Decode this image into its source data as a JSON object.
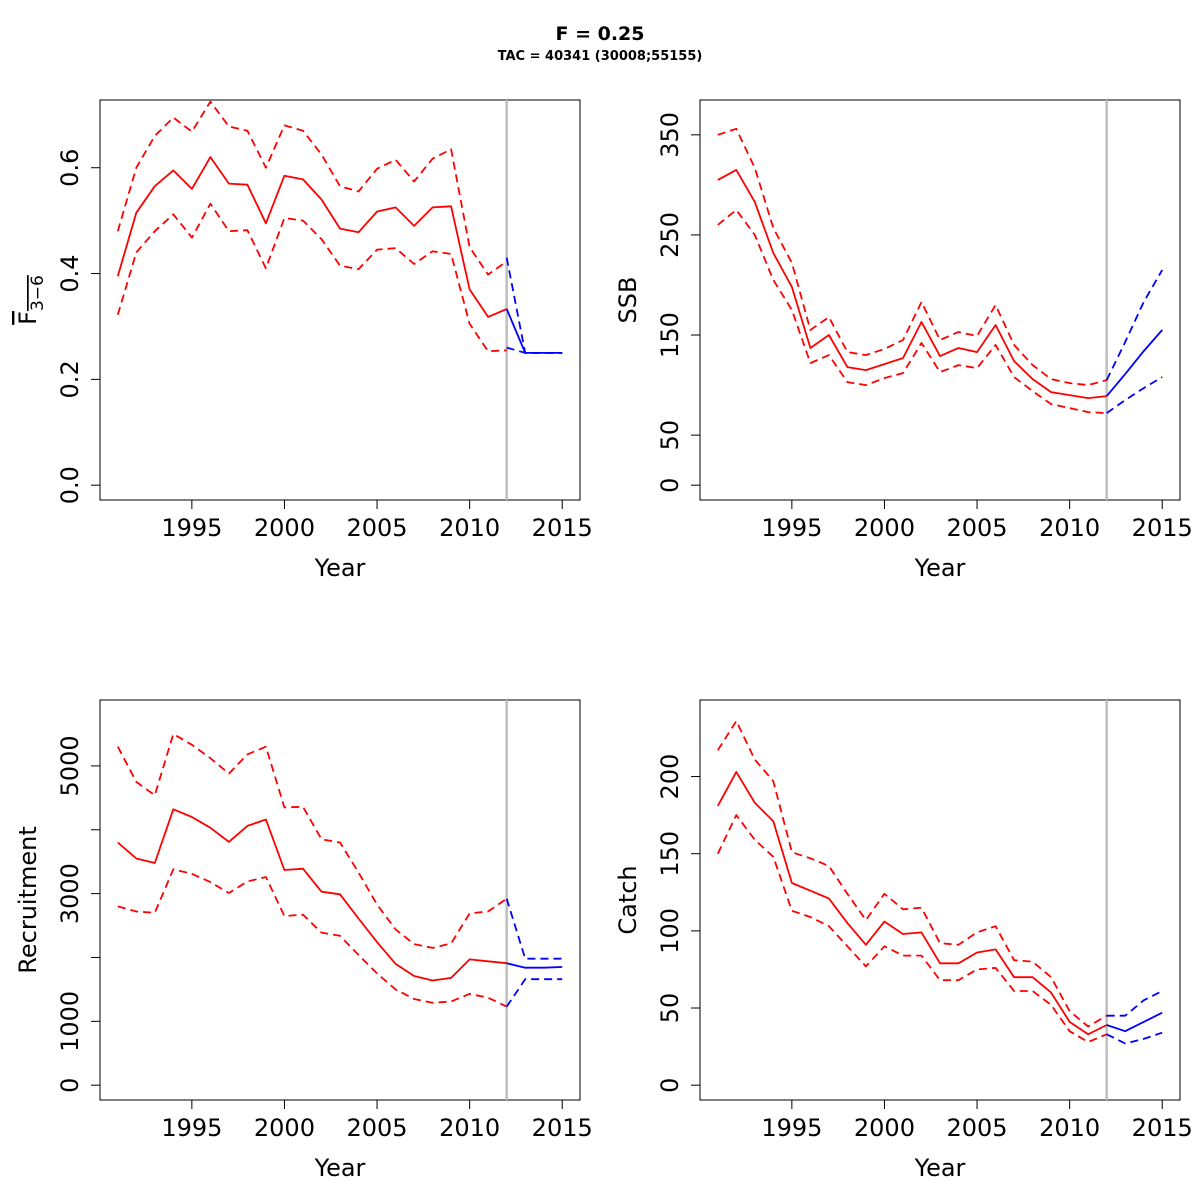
{
  "header": {
    "title": "F = 0.25",
    "subtitle": "TAC = 40341 (30008;55155)"
  },
  "colors": {
    "historic": "#ff0000",
    "forecast": "#0000ff",
    "divider": "#bebebe",
    "frame": "#000000"
  },
  "chart_data": [
    {
      "type": "line",
      "panel": "top-left",
      "xlabel": "Year",
      "ylabel": "F",
      "ylabel_sub": "3−6",
      "xlim": [
        1991,
        2015
      ],
      "ylim": [
        0,
        0.7
      ],
      "x_ticks": [
        1995,
        2000,
        2005,
        2010,
        2015
      ],
      "y_ticks": [
        0.0,
        0.2,
        0.4,
        0.6
      ],
      "y_tick_labels": [
        "0.0",
        "0.2",
        "0.4",
        "0.6"
      ],
      "divider_x": 2012,
      "series": [
        {
          "role": "historic",
          "style": "solid",
          "x": [
            1991,
            1992,
            1993,
            1994,
            1995,
            1996,
            1997,
            1998,
            1999,
            2000,
            2001,
            2002,
            2003,
            2004,
            2005,
            2006,
            2007,
            2008,
            2009,
            2010,
            2011,
            2012
          ],
          "values": [
            0.395,
            0.515,
            0.565,
            0.595,
            0.56,
            0.62,
            0.57,
            0.568,
            0.495,
            0.585,
            0.578,
            0.54,
            0.485,
            0.478,
            0.517,
            0.525,
            0.49,
            0.525,
            0.527,
            0.37,
            0.318,
            0.333
          ]
        },
        {
          "role": "historic",
          "style": "dashed",
          "x": [
            1991,
            1992,
            1993,
            1994,
            1995,
            1996,
            1997,
            1998,
            1999,
            2000,
            2001,
            2002,
            2003,
            2004,
            2005,
            2006,
            2007,
            2008,
            2009,
            2010,
            2011,
            2012
          ],
          "values": [
            0.48,
            0.6,
            0.66,
            0.695,
            0.668,
            0.725,
            0.678,
            0.67,
            0.6,
            0.68,
            0.67,
            0.625,
            0.565,
            0.555,
            0.598,
            0.615,
            0.574,
            0.617,
            0.635,
            0.45,
            0.398,
            0.423
          ]
        },
        {
          "role": "historic",
          "style": "dashed",
          "x": [
            1991,
            1992,
            1993,
            1994,
            1995,
            1996,
            1997,
            1998,
            1999,
            2000,
            2001,
            2002,
            2003,
            2004,
            2005,
            2006,
            2007,
            2008,
            2009,
            2010,
            2011,
            2012
          ],
          "values": [
            0.322,
            0.44,
            0.48,
            0.512,
            0.468,
            0.532,
            0.48,
            0.482,
            0.41,
            0.505,
            0.5,
            0.465,
            0.415,
            0.408,
            0.445,
            0.448,
            0.418,
            0.442,
            0.437,
            0.305,
            0.253,
            0.255
          ]
        },
        {
          "role": "forecast",
          "style": "solid",
          "x": [
            2012,
            2013,
            2014,
            2015
          ],
          "values": [
            0.333,
            0.25,
            0.25,
            0.25
          ]
        },
        {
          "role": "forecast",
          "style": "dashed",
          "x": [
            2012,
            2013,
            2014,
            2015
          ],
          "values": [
            0.43,
            0.25,
            0.25,
            0.25
          ]
        },
        {
          "role": "forecast",
          "style": "dashed",
          "x": [
            2012,
            2013,
            2014,
            2015
          ],
          "values": [
            0.26,
            0.25,
            0.25,
            0.25
          ]
        }
      ]
    },
    {
      "type": "line",
      "panel": "top-right",
      "xlabel": "Year",
      "ylabel": "SSB",
      "ylabel_sub": "",
      "xlim": [
        1991,
        2015
      ],
      "ylim": [
        0,
        370
      ],
      "x_ticks": [
        1995,
        2000,
        2005,
        2010,
        2015
      ],
      "y_ticks": [
        0,
        50,
        150,
        250,
        350
      ],
      "y_tick_labels": [
        "0",
        "50",
        "150",
        "250",
        "350"
      ],
      "divider_x": 2012,
      "series": [
        {
          "role": "historic",
          "style": "solid",
          "x": [
            1991,
            1992,
            1993,
            1994,
            1995,
            1996,
            1997,
            1998,
            1999,
            2000,
            2001,
            2002,
            2003,
            2004,
            2005,
            2006,
            2007,
            2008,
            2009,
            2010,
            2011,
            2012
          ],
          "values": [
            305,
            315,
            283,
            232,
            198,
            137,
            150,
            118,
            115,
            121,
            127,
            163,
            129,
            137,
            133,
            160,
            124,
            106,
            93,
            90,
            87,
            89
          ]
        },
        {
          "role": "historic",
          "style": "dashed",
          "x": [
            1991,
            1992,
            1993,
            1994,
            1995,
            1996,
            1997,
            1998,
            1999,
            2000,
            2001,
            2002,
            2003,
            2004,
            2005,
            2006,
            2007,
            2008,
            2009,
            2010,
            2011,
            2012
          ],
          "values": [
            350,
            356,
            317,
            257,
            222,
            155,
            168,
            133,
            130,
            136,
            145,
            183,
            145,
            153,
            149,
            180,
            140,
            120,
            106,
            102,
            100,
            105
          ]
        },
        {
          "role": "historic",
          "style": "dashed",
          "x": [
            1991,
            1992,
            1993,
            1994,
            1995,
            1996,
            1997,
            1998,
            1999,
            2000,
            2001,
            2002,
            2003,
            2004,
            2005,
            2006,
            2007,
            2008,
            2009,
            2010,
            2011,
            2012
          ],
          "values": [
            260,
            275,
            250,
            205,
            175,
            122,
            130,
            103,
            100,
            107,
            112,
            142,
            113,
            120,
            117,
            140,
            108,
            94,
            81,
            77,
            73,
            72
          ]
        },
        {
          "role": "forecast",
          "style": "solid",
          "x": [
            2012,
            2013,
            2014,
            2015
          ],
          "values": [
            89,
            111,
            134,
            155
          ]
        },
        {
          "role": "forecast",
          "style": "dashed",
          "x": [
            2012,
            2013,
            2014,
            2015
          ],
          "values": [
            105,
            143,
            183,
            215
          ]
        },
        {
          "role": "forecast",
          "style": "dashed",
          "x": [
            2012,
            2013,
            2014,
            2015
          ],
          "values": [
            72,
            85,
            97,
            108
          ]
        }
      ]
    },
    {
      "type": "line",
      "panel": "bottom-left",
      "xlabel": "Year",
      "ylabel": "Recruitment",
      "ylabel_sub": "",
      "xlim": [
        1991,
        2015
      ],
      "ylim": [
        0,
        5800
      ],
      "x_ticks": [
        1995,
        2000,
        2005,
        2010,
        2015
      ],
      "y_ticks": [
        0,
        1000,
        2000,
        3000,
        4000,
        5000
      ],
      "y_tick_labels": [
        "0",
        "1000",
        "",
        "3000",
        "",
        "5000"
      ],
      "divider_x": 2012,
      "series": [
        {
          "role": "historic",
          "style": "solid",
          "x": [
            1991,
            1992,
            1993,
            1994,
            1995,
            1996,
            1997,
            1998,
            1999,
            2000,
            2001,
            2002,
            2003,
            2004,
            2005,
            2006,
            2007,
            2008,
            2009,
            2010,
            2011,
            2012
          ],
          "values": [
            3800,
            3550,
            3480,
            4320,
            4200,
            4030,
            3810,
            4060,
            4160,
            3370,
            3390,
            3030,
            2990,
            2610,
            2240,
            1900,
            1710,
            1640,
            1680,
            1970,
            1940,
            1910
          ]
        },
        {
          "role": "historic",
          "style": "dashed",
          "x": [
            1991,
            1992,
            1993,
            1994,
            1995,
            1996,
            1997,
            1998,
            1999,
            2000,
            2001,
            2002,
            2003,
            2004,
            2005,
            2006,
            2007,
            2008,
            2009,
            2010,
            2011,
            2012
          ],
          "values": [
            5300,
            4750,
            4540,
            5500,
            5330,
            5120,
            4880,
            5180,
            5300,
            4350,
            4360,
            3850,
            3800,
            3330,
            2830,
            2440,
            2210,
            2150,
            2220,
            2690,
            2720,
            2920
          ]
        },
        {
          "role": "historic",
          "style": "dashed",
          "x": [
            1991,
            1992,
            1993,
            1994,
            1995,
            1996,
            1997,
            1998,
            1999,
            2000,
            2001,
            2002,
            2003,
            2004,
            2005,
            2006,
            2007,
            2008,
            2009,
            2010,
            2011,
            2012
          ],
          "values": [
            2800,
            2720,
            2700,
            3380,
            3310,
            3180,
            3010,
            3190,
            3260,
            2650,
            2670,
            2390,
            2340,
            2040,
            1750,
            1500,
            1350,
            1290,
            1310,
            1430,
            1370,
            1230
          ]
        },
        {
          "role": "forecast",
          "style": "solid",
          "x": [
            2012,
            2013,
            2014,
            2015
          ],
          "values": [
            1910,
            1840,
            1840,
            1850
          ]
        },
        {
          "role": "forecast",
          "style": "dashed",
          "x": [
            2012,
            2013,
            2014,
            2015
          ],
          "values": [
            2920,
            1980,
            1980,
            1980
          ]
        },
        {
          "role": "forecast",
          "style": "dashed",
          "x": [
            2012,
            2013,
            2014,
            2015
          ],
          "values": [
            1230,
            1660,
            1660,
            1660
          ]
        }
      ]
    },
    {
      "type": "line",
      "panel": "bottom-right",
      "xlabel": "Year",
      "ylabel": "Catch",
      "ylabel_sub": "",
      "xlim": [
        1991,
        2015
      ],
      "ylim": [
        0,
        240
      ],
      "x_ticks": [
        1995,
        2000,
        2005,
        2010,
        2015
      ],
      "y_ticks": [
        0,
        50,
        100,
        150,
        200
      ],
      "y_tick_labels": [
        "0",
        "50",
        "100",
        "150",
        "200"
      ],
      "divider_x": 2012,
      "series": [
        {
          "role": "historic",
          "style": "solid",
          "x": [
            1991,
            1992,
            1993,
            1994,
            1995,
            1996,
            1997,
            1998,
            1999,
            2000,
            2001,
            2002,
            2003,
            2004,
            2005,
            2006,
            2007,
            2008,
            2009,
            2010,
            2011,
            2012
          ],
          "values": [
            181,
            203,
            183,
            171,
            131,
            126,
            121,
            105,
            91,
            106,
            98,
            99,
            79,
            79,
            86,
            88,
            70,
            70,
            60,
            41,
            33,
            39
          ]
        },
        {
          "role": "historic",
          "style": "dashed",
          "x": [
            1991,
            1992,
            1993,
            1994,
            1995,
            1996,
            1997,
            1998,
            1999,
            2000,
            2001,
            2002,
            2003,
            2004,
            2005,
            2006,
            2007,
            2008,
            2009,
            2010,
            2011,
            2012
          ],
          "values": [
            217,
            236,
            211,
            197,
            151,
            147,
            142,
            124,
            107,
            124,
            114,
            115,
            92,
            91,
            99,
            103,
            81,
            80,
            70,
            48,
            38,
            45
          ]
        },
        {
          "role": "historic",
          "style": "dashed",
          "x": [
            1991,
            1992,
            1993,
            1994,
            1995,
            1996,
            1997,
            1998,
            1999,
            2000,
            2001,
            2002,
            2003,
            2004,
            2005,
            2006,
            2007,
            2008,
            2009,
            2010,
            2011,
            2012
          ],
          "values": [
            150,
            175,
            159,
            148,
            113,
            109,
            103,
            90,
            77,
            90,
            84,
            84,
            68,
            68,
            75,
            76,
            61,
            61,
            52,
            35,
            28,
            33
          ]
        },
        {
          "role": "forecast",
          "style": "solid",
          "x": [
            2012,
            2013,
            2014,
            2015
          ],
          "values": [
            39,
            35,
            41,
            47
          ]
        },
        {
          "role": "forecast",
          "style": "dashed",
          "x": [
            2012,
            2013,
            2014,
            2015
          ],
          "values": [
            45,
            45,
            55,
            61
          ]
        },
        {
          "role": "forecast",
          "style": "dashed",
          "x": [
            2012,
            2013,
            2014,
            2015
          ],
          "values": [
            33,
            27,
            30,
            34
          ]
        }
      ]
    }
  ]
}
